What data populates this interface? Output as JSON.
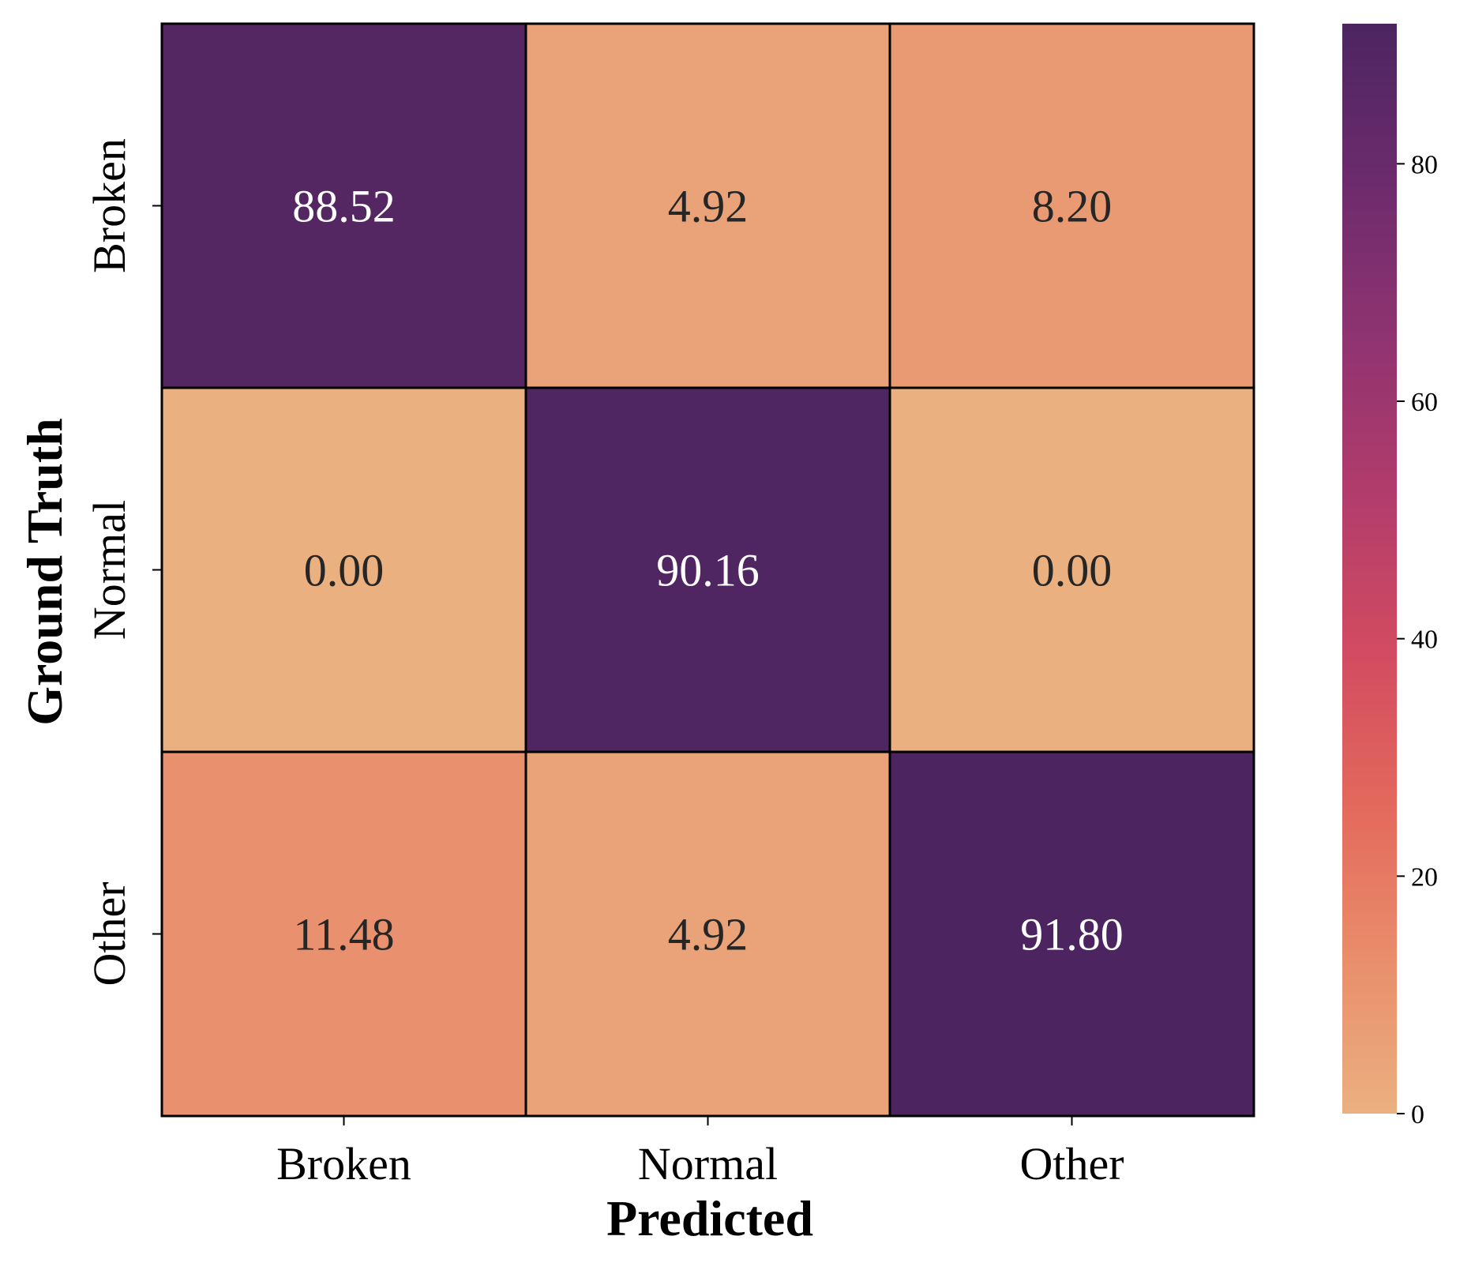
{
  "chart_data": {
    "type": "heatmap",
    "xlabel": "Predicted",
    "ylabel": "Ground Truth",
    "x_categories": [
      "Broken",
      "Normal",
      "Other"
    ],
    "y_categories": [
      "Broken",
      "Normal",
      "Other"
    ],
    "values": [
      [
        88.52,
        4.92,
        8.2
      ],
      [
        0.0,
        90.16,
        0.0
      ],
      [
        11.48,
        4.92,
        91.8
      ]
    ],
    "value_format": "0.00",
    "colorbar": {
      "min": 0,
      "max": 91.8,
      "ticks": [
        0,
        20,
        40,
        60,
        80
      ],
      "colormap": "flare",
      "colors": [
        "#ebb080",
        "#e98d6b",
        "#e3685c",
        "#d14a61",
        "#b13c6c",
        "#8f3371",
        "#6c2b6d",
        "#4c2560"
      ]
    },
    "grid": true
  }
}
